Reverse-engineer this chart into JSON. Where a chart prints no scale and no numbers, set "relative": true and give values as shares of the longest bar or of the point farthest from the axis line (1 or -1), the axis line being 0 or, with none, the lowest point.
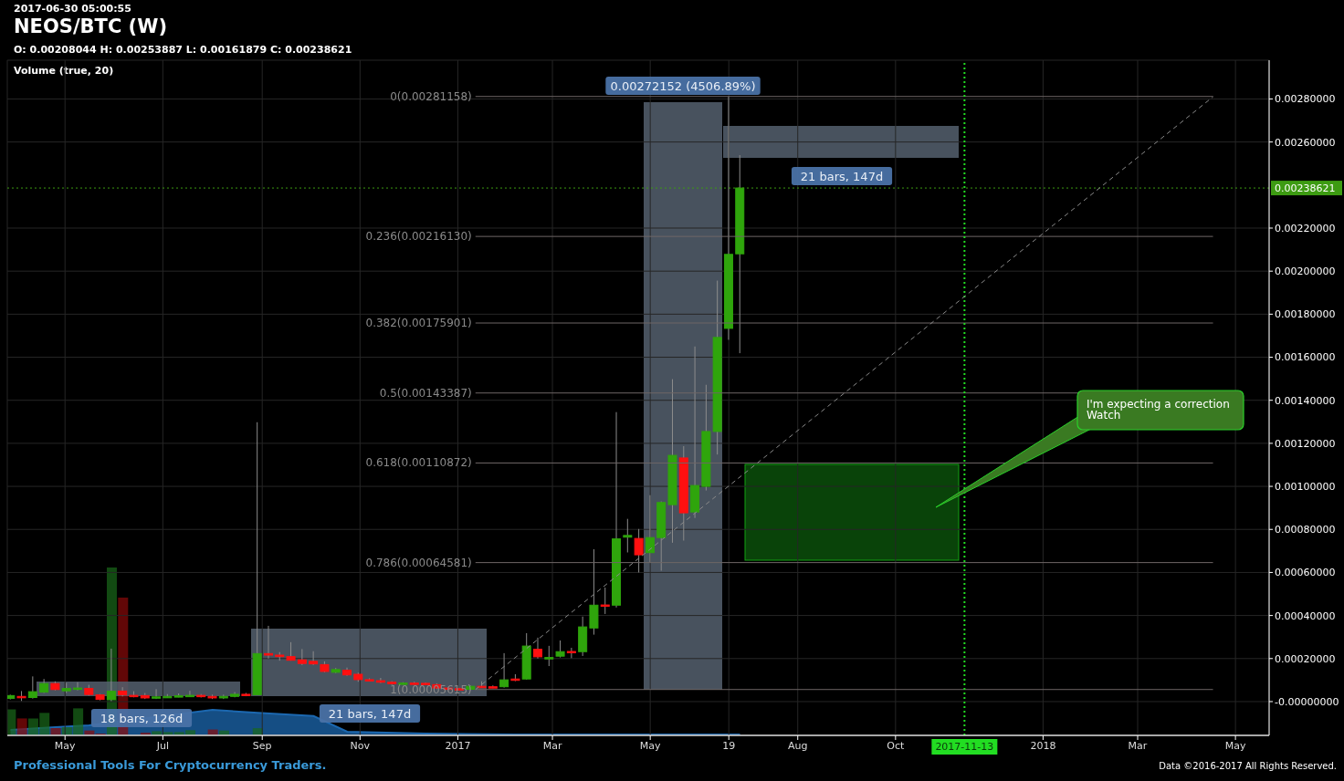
{
  "chart_data": [
    {
      "type": "candlestick",
      "title": "NEOS/BTC (W)",
      "subtitle": "O: 0.00208044 H: 0.00253887 L: 0.00161879 C: 0.00238621",
      "x": [
        "2016-03-28",
        "2016-04-04",
        "2016-04-11",
        "2016-04-18",
        "2016-04-25",
        "2016-05-02",
        "2016-05-09",
        "2016-05-16",
        "2016-05-23",
        "2016-05-30",
        "2016-06-06",
        "2016-06-13",
        "2016-06-20",
        "2016-06-27",
        "2016-07-04",
        "2016-07-11",
        "2016-07-18",
        "2016-07-25",
        "2016-08-01",
        "2016-08-08",
        "2016-08-15",
        "2016-08-22",
        "2016-08-29",
        "2016-09-05",
        "2016-09-12",
        "2016-09-19",
        "2016-09-26",
        "2016-10-03",
        "2016-10-10",
        "2016-10-17",
        "2016-10-24",
        "2016-10-31",
        "2016-11-07",
        "2016-11-14",
        "2016-11-21",
        "2016-11-28",
        "2016-12-05",
        "2016-12-12",
        "2016-12-19",
        "2016-12-26",
        "2017-01-02",
        "2017-01-09",
        "2017-01-16",
        "2017-01-23",
        "2017-01-30",
        "2017-02-06",
        "2017-02-13",
        "2017-02-20",
        "2017-02-27",
        "2017-03-06",
        "2017-03-13",
        "2017-03-20",
        "2017-03-27",
        "2017-04-03",
        "2017-04-10",
        "2017-04-17",
        "2017-04-24",
        "2017-05-01",
        "2017-05-08",
        "2017-05-15",
        "2017-05-22",
        "2017-05-29",
        "2017-06-05",
        "2017-06-12",
        "2017-06-19",
        "2017-06-26"
      ],
      "ohlc": [
        [
          1.5e-05,
          3.2e-05,
          1e-05,
          2.8e-05
        ],
        [
          2.4e-05,
          4.9e-05,
          3e-06,
          2.2e-05
        ],
        [
          1.9e-05,
          0.000117,
          1.4e-05,
          4.6e-05
        ],
        [
          4.4e-05,
          0.000105,
          4e-05,
          8.4e-05
        ],
        [
          8.4e-05,
          9.4e-05,
          5.2e-05,
          5.6e-05
        ],
        [
          5e-05,
          8.7e-05,
          4e-05,
          6.1e-05
        ],
        [
          5.7e-05,
          9e-05,
          5.2e-05,
          6.3e-05
        ],
        [
          6.1e-05,
          7.8e-05,
          2.8e-05,
          3.3e-05
        ],
        [
          3.1e-05,
          3.5e-05,
          6e-06,
          1e-05
        ],
        [
          1e-05,
          0.000246,
          2e-06,
          4.8e-05
        ],
        [
          4.9e-05,
          6.7e-05,
          2.4e-05,
          3.1e-05
        ],
        [
          2.9e-05,
          4.8e-05,
          2e-05,
          2.7e-05
        ],
        [
          2.8e-05,
          4e-05,
          1.2e-05,
          1.7e-05
        ],
        [
          1.7e-05,
          5.8e-05,
          1.2e-05,
          2.2e-05
        ],
        [
          2.2e-05,
          3.5e-05,
          1.7e-05,
          2.4e-05
        ],
        [
          2.4e-05,
          3.8e-05,
          2e-05,
          2.7e-05
        ],
        [
          2.7e-05,
          5e-05,
          2.2e-05,
          2.9e-05
        ],
        [
          2.9e-05,
          3.5e-05,
          1.9e-05,
          2.4e-05
        ],
        [
          2.4e-05,
          3.2e-05,
          1.2e-05,
          1.7e-05
        ],
        [
          1.7e-05,
          3.2e-05,
          1.2e-05,
          2.4e-05
        ],
        [
          2.4e-05,
          4.4e-05,
          2e-05,
          3.4e-05
        ],
        [
          3.4e-05,
          4e-05,
          2.5e-05,
          3e-05
        ],
        [
          3.2e-05,
          0.001298,
          3e-05,
          0.000223
        ],
        [
          0.000223,
          0.000352,
          0.0002,
          0.000216
        ],
        [
          0.000216,
          0.00023,
          0.00019,
          0.000209
        ],
        [
          0.000209,
          0.000276,
          0.00019,
          0.000192
        ],
        [
          0.000194,
          0.000244,
          0.00017,
          0.000177
        ],
        [
          0.000187,
          0.000234,
          0.00017,
          0.000175
        ],
        [
          0.000172,
          0.000187,
          0.000136,
          0.00014
        ],
        [
          0.000136,
          0.000156,
          0.000132,
          0.000149
        ],
        [
          0.000146,
          0.000158,
          0.00012,
          0.000124
        ],
        [
          0.000127,
          0.000134,
          9.2e-05,
          0.000102
        ],
        [
          0.000102,
          0.000108,
          9.5e-05,
          9.9e-05
        ],
        [
          9.7e-05,
          0.00011,
          8.6e-05,
          9e-05
        ],
        [
          9e-05,
          9.5e-05,
          7.8e-05,
          8.3e-05
        ],
        [
          8.3e-05,
          9e-05,
          7.9e-05,
          8.6e-05
        ],
        [
          8.6e-05,
          9.2e-05,
          8e-05,
          8.5e-05
        ],
        [
          8.5e-05,
          8.9e-05,
          7.8e-05,
          8.2e-05
        ],
        [
          7.9e-05,
          8.5e-05,
          5.8e-05,
          6.3e-05
        ],
        [
          6.3e-05,
          6.8e-05,
          5.5e-05,
          6e-05
        ],
        [
          6e-05,
          6.4e-05,
          5.4e-05,
          5.9e-05
        ],
        [
          5.7e-05,
          7.5e-05,
          5.3e-05,
          7.1e-05
        ],
        [
          7.1e-05,
          9.4e-05,
          6.4e-05,
          6.9e-05
        ],
        [
          6.9e-05,
          7.5e-05,
          6.2e-05,
          6.6e-05
        ],
        [
          6.9e-05,
          0.000225,
          6.5e-05,
          0.000101
        ],
        [
          0.000105,
          0.000127,
          9.5e-05,
          0.0001
        ],
        [
          0.000105,
          0.000318,
          0.000102,
          0.000258
        ],
        [
          0.000243,
          0.000297,
          0.0002,
          0.000208
        ],
        [
          0.000198,
          0.000259,
          0.000165,
          0.000205
        ],
        [
          0.000211,
          0.000284,
          0.000205,
          0.000232
        ],
        [
          0.000233,
          0.00025,
          0.000202,
          0.00023
        ],
        [
          0.000232,
          0.000395,
          0.000212,
          0.000347
        ],
        [
          0.000342,
          0.000708,
          0.000311,
          0.000448
        ],
        [
          0.000449,
          0.00053,
          0.000407,
          0.000447
        ],
        [
          0.000448,
          0.001345,
          0.000437,
          0.000756
        ],
        [
          0.000764,
          0.000849,
          0.000693,
          0.000772
        ],
        [
          0.000758,
          0.000802,
          0.0006,
          0.000682
        ],
        [
          0.000692,
          0.000959,
          0.000646,
          0.000762
        ],
        [
          0.000762,
          0.00093,
          0.000608,
          0.000925
        ],
        [
          0.000915,
          0.001498,
          0.000738,
          0.001144
        ],
        [
          0.001132,
          0.001187,
          0.000748,
          0.000877
        ],
        [
          0.000881,
          0.00165,
          0.000853,
          0.001004
        ],
        [
          0.001,
          0.001472,
          0.000981,
          0.001255
        ],
        [
          0.001255,
          0.001956,
          0.001148,
          0.001692
        ],
        [
          0.001734,
          0.00281158,
          0.001681,
          0.002078
        ],
        [
          0.00208044,
          0.00253887,
          0.00161879,
          0.00238621
        ]
      ],
      "colors": [
        "#2fa50c",
        "#ff1010",
        "#2fa50c",
        "#2fa50c",
        "#ff1010",
        "#2fa50c",
        "#2fa50c",
        "#ff1010",
        "#ff1010",
        "#2fa50c",
        "#ff1010",
        "#ff1010",
        "#ff1010",
        "#2fa50c",
        "#2fa50c",
        "#2fa50c",
        "#2fa50c",
        "#ff1010",
        "#ff1010",
        "#2fa50c",
        "#2fa50c",
        "#ff1010",
        "#2fa50c",
        "#ff1010",
        "#ff1010",
        "#ff1010",
        "#ff1010",
        "#ff1010",
        "#ff1010",
        "#2fa50c",
        "#ff1010",
        "#ff1010",
        "#ff1010",
        "#ff1010",
        "#ff1010",
        "#2fa50c",
        "#ff1010",
        "#ff1010",
        "#ff1010",
        "#ff1010",
        "#ff1010",
        "#2fa50c",
        "#ff1010",
        "#ff1010",
        "#2fa50c",
        "#ff1010",
        "#2fa50c",
        "#ff1010",
        "#2fa50c",
        "#2fa50c",
        "#ff1010",
        "#2fa50c",
        "#2fa50c",
        "#ff1010",
        "#2fa50c",
        "#2fa50c",
        "#ff1010",
        "#2fa50c",
        "#2fa50c",
        "#2fa50c",
        "#ff1010",
        "#2fa50c",
        "#2fa50c",
        "#2fa50c",
        "#2fa50c",
        "#2fa50c"
      ],
      "series": [
        {
          "type": "line",
          "x": [
            "2017-01-12",
            "2018-04-17"
          ],
          "values": [
            5.6e-05,
            0.00281
          ],
          "color": "#8a8a8a",
          "line_style": "dashed"
        }
      ],
      "ref_lines": [
        {
          "axis": "y",
          "value": 0.00281158,
          "label": "0(0.00281158)",
          "color": "#6e6666"
        },
        {
          "axis": "y",
          "value": 0.0021613,
          "label": "0.236(0.00216130)",
          "color": "#6e6666"
        },
        {
          "axis": "y",
          "value": 0.00175901,
          "label": "0.382(0.00175901)",
          "color": "#6e6666"
        },
        {
          "axis": "y",
          "value": 0.00143387,
          "label": "0.5(0.00143387)",
          "color": "#6e6666"
        },
        {
          "axis": "y",
          "value": 0.00110872,
          "label": "0.618(0.00110872)",
          "color": "#6e6666"
        },
        {
          "axis": "y",
          "value": 0.00064581,
          "label": "0.786(0.00064581)",
          "color": "#6e6666"
        },
        {
          "axis": "y",
          "value": 5.615e-05,
          "label": "1(0.00005615)",
          "color": "#6e6666"
        },
        {
          "axis": "y",
          "value": 0.00238621,
          "label": "0.00238621",
          "color": "#3d9b12",
          "line_style": "dotted"
        },
        {
          "axis": "x",
          "value": "2017-11-13",
          "label": "2017-11-13",
          "color": "#22dd22",
          "line_style": "dotted"
        }
      ],
      "annotations": [
        "2017-06-30 05:00:55",
        "I'm expecting a correction\nWatch",
        "Professional Tools For Cryptocurrency Traders.",
        "Data ©2016-2017 All Rights Reserved.",
        "18 bars, 126d",
        "21 bars, 147d",
        "0.00272152 (4506.89%)",
        "21 bars, 147d"
      ],
      "xlim": [
        "2016-03-26",
        "2018-05-22"
      ],
      "xticks": [
        {
          "value": "2016-05-01",
          "label": "May"
        },
        {
          "value": "2016-07-01",
          "label": "Jul"
        },
        {
          "value": "2016-09-01",
          "label": "Sep"
        },
        {
          "value": "2016-11-01",
          "label": "Nov"
        },
        {
          "value": "2017-01-01",
          "label": "2017"
        },
        {
          "value": "2017-03-01",
          "label": "Mar"
        },
        {
          "value": "2017-05-01",
          "label": "May"
        },
        {
          "value": "2017-06-19",
          "label": "19"
        },
        {
          "value": "2017-08-01",
          "label": "Aug"
        },
        {
          "value": "2017-10-01",
          "label": "Oct"
        },
        {
          "value": "2018-01-01",
          "label": "2018"
        },
        {
          "value": "2018-03-01",
          "label": "Mar"
        },
        {
          "value": "2018-05-01",
          "label": "May"
        }
      ],
      "ylim": [
        -0.000157,
        0.00298
      ],
      "yticks": [
        {
          "value": 0,
          "label": "-0.00000000"
        },
        {
          "value": 0.0002,
          "label": "0.00020000"
        },
        {
          "value": 0.0004,
          "label": "0.00040000"
        },
        {
          "value": 0.0006,
          "label": "0.00060000"
        },
        {
          "value": 0.0008,
          "label": "0.00080000"
        },
        {
          "value": 0.001,
          "label": "0.00100000"
        },
        {
          "value": 0.0012,
          "label": "0.00120000"
        },
        {
          "value": 0.0014,
          "label": "0.00140000"
        },
        {
          "value": 0.0016,
          "label": "0.00160000"
        },
        {
          "value": 0.0018,
          "label": "0.00180000"
        },
        {
          "value": 0.002,
          "label": "0.00200000"
        },
        {
          "value": 0.0022,
          "label": "0.00220000"
        },
        {
          "value": 0.0026,
          "label": "0.00260000"
        },
        {
          "value": 0.0028,
          "label": "0.00280000"
        }
      ],
      "grid": true
    },
    {
      "type": "bar",
      "title": "Volume (true, 20)",
      "relative": true,
      "tick_labels": false,
      "xlim": [
        "2016-03-26",
        "2018-05-22"
      ],
      "x": [
        "2016-03-28",
        "2016-04-04",
        "2016-04-11",
        "2016-04-18",
        "2016-04-25",
        "2016-05-02",
        "2016-05-09",
        "2016-05-16",
        "2016-05-23",
        "2016-05-30",
        "2016-06-06",
        "2016-06-13",
        "2016-06-20",
        "2016-06-27",
        "2016-07-04",
        "2016-07-11",
        "2016-07-18",
        "2016-07-25",
        "2016-08-01",
        "2016-08-08",
        "2016-08-15",
        "2016-08-22",
        "2016-08-29"
      ],
      "series": [
        {
          "type": "bar",
          "values": [
            0.155,
            0.101,
            0.101,
            0.134,
            0.043,
            0.049,
            0.161,
            0.029,
            0.011,
            1,
            0.821,
            null,
            0.016,
            0.025,
            0.02,
            0.02,
            0.031,
            null,
            0.035,
            0.029,
            null,
            null,
            0.043
          ],
          "colors": [
            "#1a6a1a",
            "#8b0a0a",
            "#1a6a1a",
            "#1a6a1a",
            "#8b0a0a",
            "#1a6a1a",
            "#1a6a1a",
            "#8b0a0a",
            "#8b0a0a",
            "#1a6a1a",
            "#8b0a0a",
            "#8b0a0a",
            "#8b0a0a",
            "#1a6a1a",
            "#1a6a1a",
            "#1a6a1a",
            "#1a6a1a",
            "#8b0a0a",
            "#8b0a0a",
            "#1a6a1a",
            "#1a6a1a",
            "#8b0a0a",
            "#1a6a1a"
          ]
        },
        {
          "type": "area",
          "x": [
            "2016-03-28",
            "2016-04-25",
            "2016-05-16",
            "2016-08-01",
            "2016-08-29",
            "2016-10-03",
            "2016-10-24",
            "2016-12-12",
            "2017-02-06",
            "2017-06-26"
          ],
          "values": [
            0.033,
            0.049,
            0.06,
            0.152,
            0.134,
            0.115,
            0.022,
            0.011,
            0.005,
            0.005
          ],
          "color": "#1c68b0"
        }
      ]
    }
  ]
}
